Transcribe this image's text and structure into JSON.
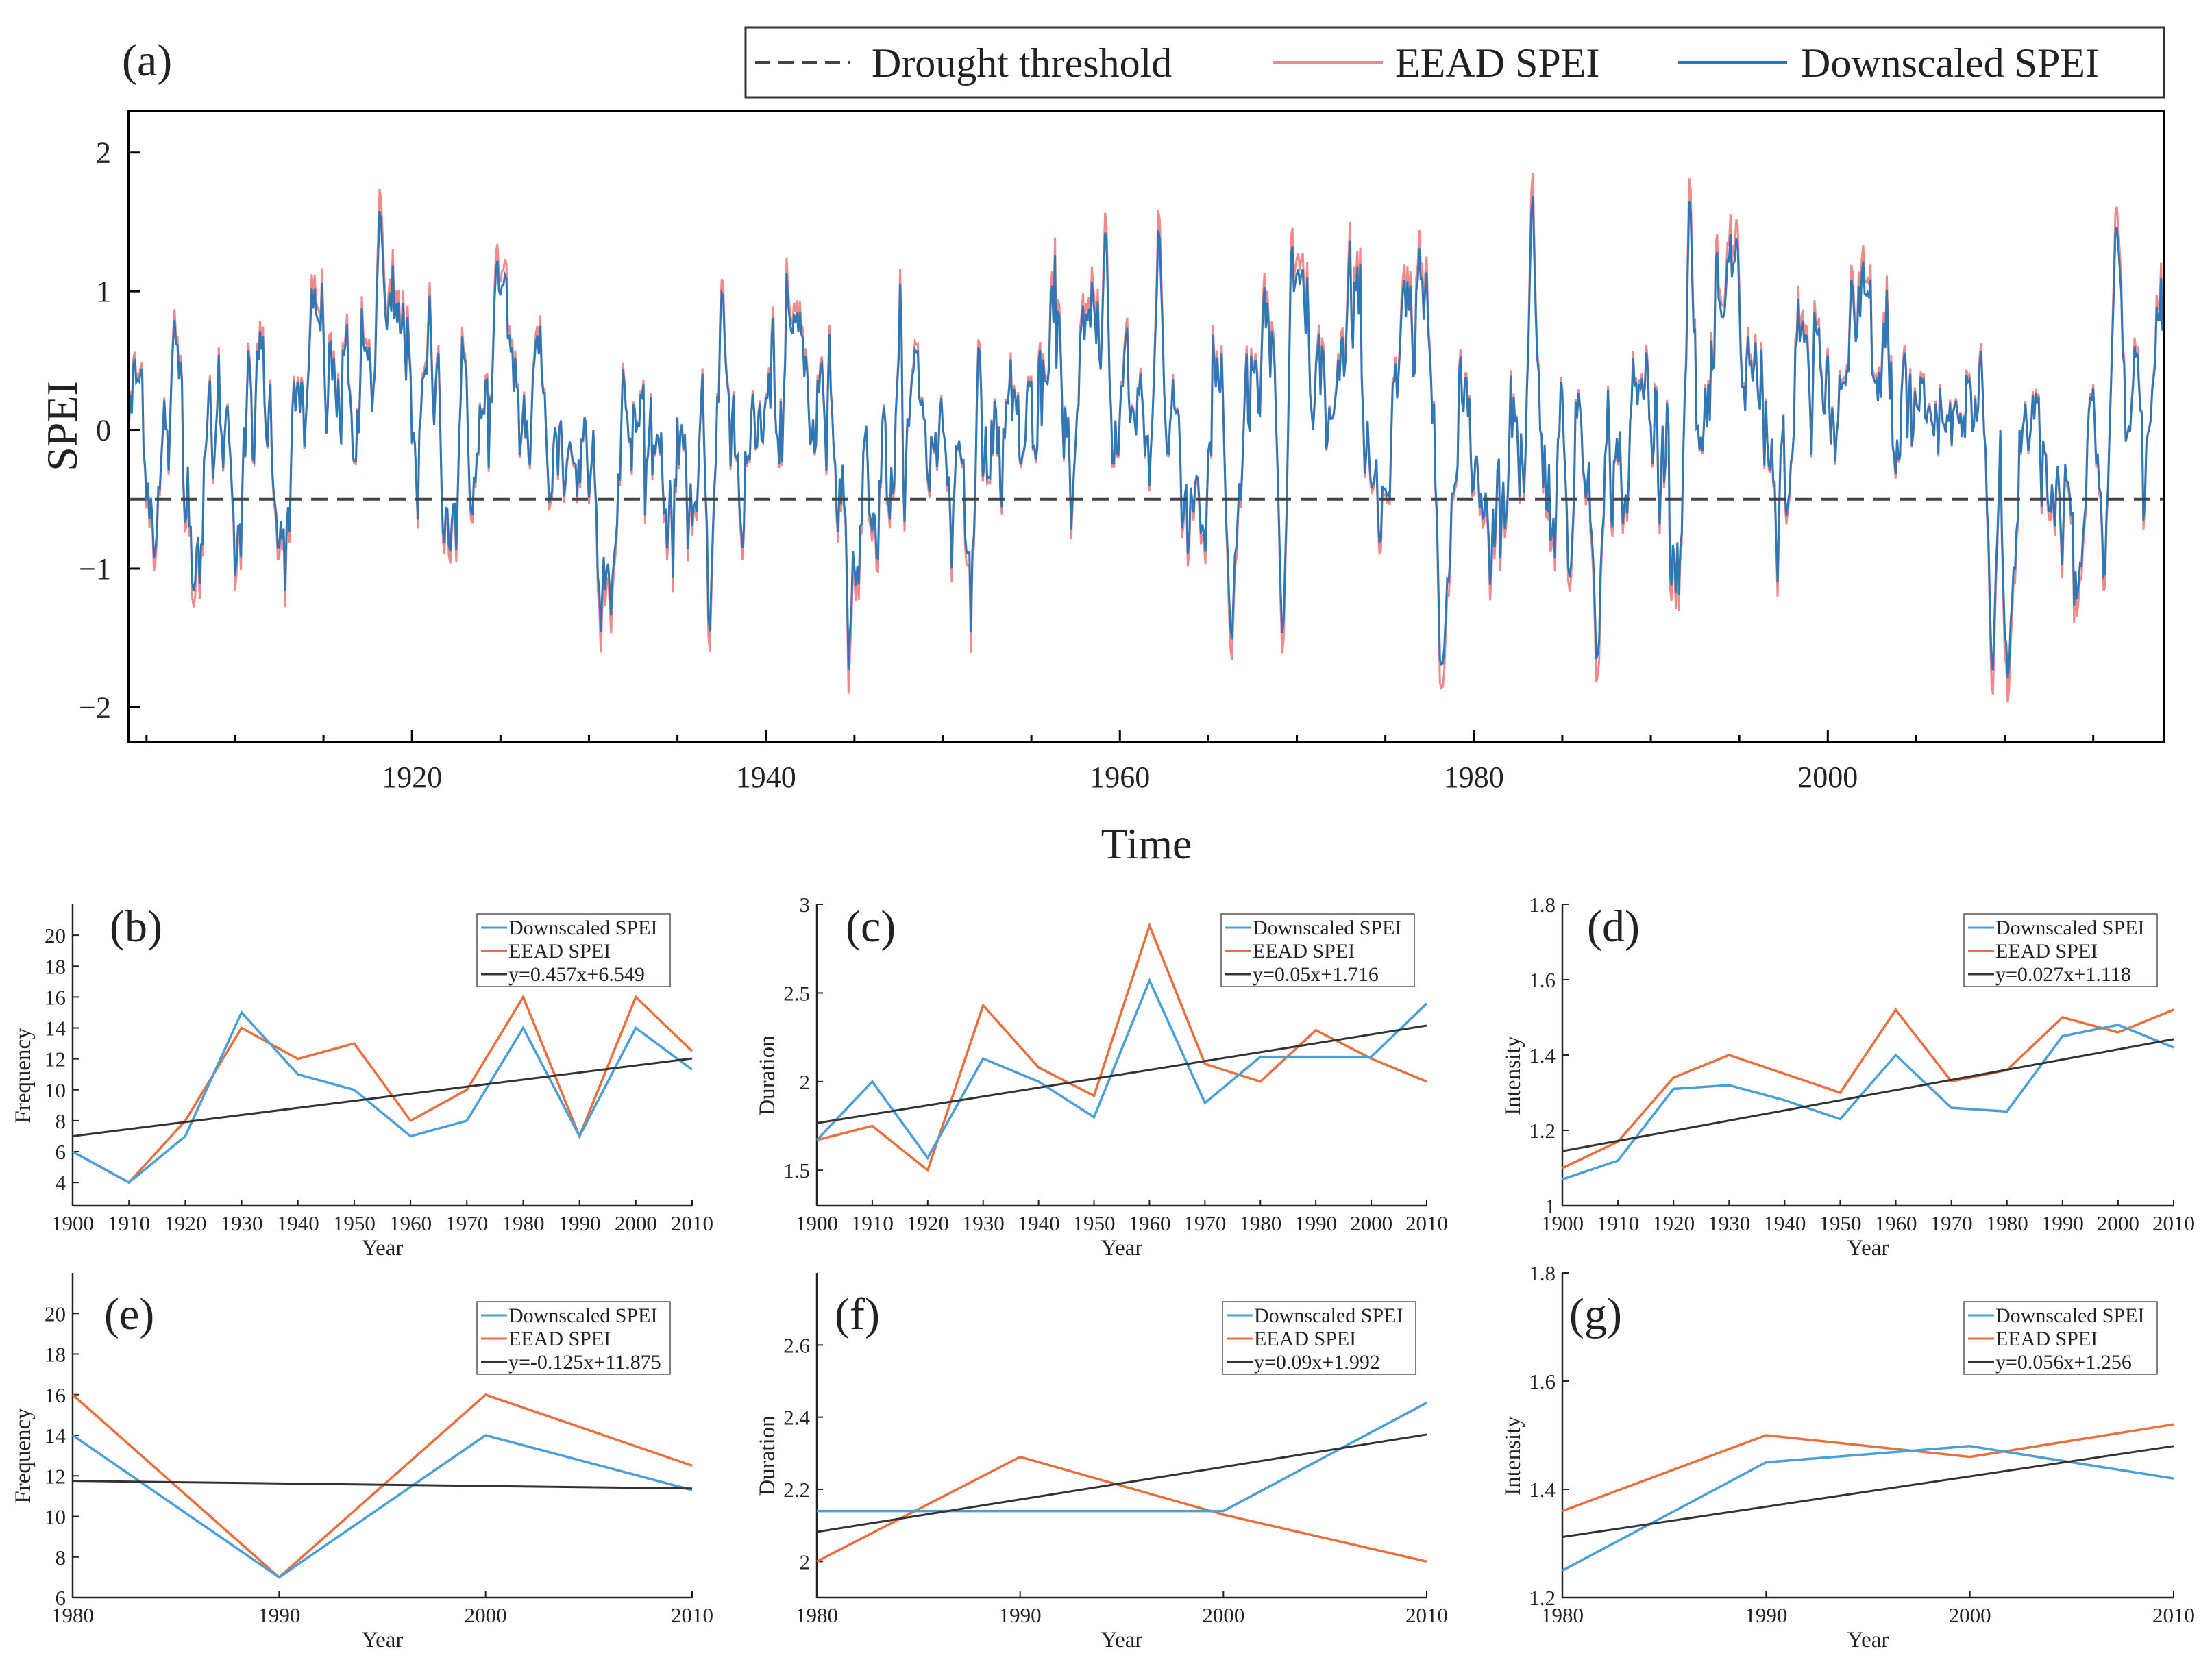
{
  "chart_data": [
    {
      "id": "a",
      "panel_label": "(a)",
      "type": "line",
      "xlabel": "Time",
      "ylabel": "SPEI",
      "xlim": [
        1904,
        2019
      ],
      "ylim": [
        -2.25,
        2.3
      ],
      "xticks": [
        1920,
        1940,
        1960,
        1980,
        2000
      ],
      "yticks": [
        -2,
        -1,
        0,
        1,
        2
      ],
      "threshold": -0.5,
      "legend": {
        "threshold": "Drought threshold",
        "eead": "EEAD SPEI",
        "downscaled": "Downscaled SPEI"
      },
      "notable_peaks": [
        {
          "year": 1918.2,
          "value": 1.68
        },
        {
          "year": 1924.8,
          "value": 1.28
        },
        {
          "year": 1936.8,
          "value": -1.62
        },
        {
          "year": 1959.2,
          "value": 1.55
        },
        {
          "year": 1962.2,
          "value": 1.58
        },
        {
          "year": 1966.3,
          "value": -1.62
        },
        {
          "year": 1969.2,
          "value": -1.58
        },
        {
          "year": 1983.3,
          "value": 1.87
        },
        {
          "year": 1992.2,
          "value": 1.87
        },
        {
          "year": 2009.3,
          "value": -1.85
        },
        {
          "year": 2010.2,
          "value": -1.88
        },
        {
          "year": 2016.3,
          "value": 1.57
        }
      ]
    },
    {
      "id": "b",
      "panel_label": "(b)",
      "type": "line",
      "xlabel": "Year",
      "ylabel": "Frequency",
      "xlim": [
        1900,
        2010
      ],
      "ylim": [
        2.5,
        22
      ],
      "xticks": [
        1900,
        1910,
        1920,
        1930,
        1940,
        1950,
        1960,
        1970,
        1980,
        1990,
        2000,
        2010
      ],
      "yticks": [
        4,
        6,
        8,
        10,
        12,
        14,
        16,
        18,
        20
      ],
      "series": [
        {
          "name": "Downscaled SPEI",
          "x": [
            1900,
            1910,
            1920,
            1930,
            1940,
            1950,
            1960,
            1970,
            1980,
            1990,
            2000,
            2010
          ],
          "values": [
            6,
            4,
            7,
            15,
            11,
            10,
            7,
            8,
            14,
            7,
            14,
            11.3
          ]
        },
        {
          "name": "EEAD SPEI",
          "x": [
            1900,
            1910,
            1920,
            1930,
            1940,
            1950,
            1960,
            1970,
            1980,
            1990,
            2000,
            2010
          ],
          "values": [
            6,
            4,
            8,
            14,
            12,
            13,
            8,
            10,
            16,
            7,
            16,
            12.5
          ]
        }
      ],
      "trend": {
        "label": "y=0.457x+6.549",
        "x": [
          1900,
          2010
        ],
        "values": [
          7.0,
          12.03
        ]
      }
    },
    {
      "id": "c",
      "panel_label": "(c)",
      "type": "line",
      "xlabel": "Year",
      "ylabel": "Duration",
      "xlim": [
        1900,
        2010
      ],
      "ylim": [
        1.3,
        3.0
      ],
      "xticks": [
        1900,
        1910,
        1920,
        1930,
        1940,
        1950,
        1960,
        1970,
        1980,
        1990,
        2000,
        2010
      ],
      "yticks": [
        1.5,
        2,
        2.5,
        3
      ],
      "series": [
        {
          "name": "Downscaled SPEI",
          "x": [
            1900,
            1910,
            1920,
            1930,
            1940,
            1950,
            1960,
            1970,
            1980,
            1990,
            2000,
            2010
          ],
          "values": [
            1.67,
            2.0,
            1.57,
            2.13,
            2.0,
            1.8,
            2.57,
            1.88,
            2.14,
            2.14,
            2.14,
            2.44
          ]
        },
        {
          "name": "EEAD SPEI",
          "x": [
            1900,
            1910,
            1920,
            1930,
            1940,
            1950,
            1960,
            1970,
            1980,
            1990,
            2000,
            2010
          ],
          "values": [
            1.67,
            1.75,
            1.5,
            2.43,
            2.08,
            1.92,
            2.88,
            2.1,
            2.0,
            2.29,
            2.13,
            2.0
          ]
        }
      ],
      "trend": {
        "label": "y=0.05x+1.716",
        "x": [
          1900,
          2010
        ],
        "values": [
          1.766,
          2.316
        ]
      }
    },
    {
      "id": "d",
      "panel_label": "(d)",
      "type": "line",
      "xlabel": "Year",
      "ylabel": "Intensity",
      "xlim": [
        1900,
        2010
      ],
      "ylim": [
        1.0,
        1.8
      ],
      "xticks": [
        1900,
        1910,
        1920,
        1930,
        1940,
        1950,
        1960,
        1970,
        1980,
        1990,
        2000,
        2010
      ],
      "yticks": [
        1,
        1.2,
        1.4,
        1.6,
        1.8
      ],
      "series": [
        {
          "name": "Downscaled SPEI",
          "x": [
            1900,
            1910,
            1920,
            1930,
            1940,
            1950,
            1960,
            1970,
            1980,
            1990,
            2000,
            2010
          ],
          "values": [
            1.07,
            1.12,
            1.31,
            1.32,
            1.28,
            1.23,
            1.4,
            1.26,
            1.25,
            1.45,
            1.48,
            1.42
          ]
        },
        {
          "name": "EEAD SPEI",
          "x": [
            1900,
            1910,
            1920,
            1930,
            1940,
            1950,
            1960,
            1970,
            1980,
            1990,
            2000,
            2010
          ],
          "values": [
            1.1,
            1.17,
            1.34,
            1.4,
            1.35,
            1.3,
            1.52,
            1.33,
            1.36,
            1.5,
            1.46,
            1.52
          ]
        }
      ],
      "trend": {
        "label": "y=0.027x+1.118",
        "x": [
          1900,
          2010
        ],
        "values": [
          1.145,
          1.442
        ]
      }
    },
    {
      "id": "e",
      "panel_label": "(e)",
      "type": "line",
      "xlabel": "Year",
      "ylabel": "Frequency",
      "xlim": [
        1980,
        2010
      ],
      "ylim": [
        6,
        22
      ],
      "xticks": [
        1980,
        1990,
        2000,
        2010
      ],
      "yticks": [
        6,
        8,
        10,
        12,
        14,
        16,
        18,
        20
      ],
      "series": [
        {
          "name": "Downscaled SPEI",
          "x": [
            1980,
            1990,
            2000,
            2010
          ],
          "values": [
            14,
            7,
            14,
            11.3
          ]
        },
        {
          "name": "EEAD SPEI",
          "x": [
            1980,
            1990,
            2000,
            2010
          ],
          "values": [
            16,
            7,
            16,
            12.5
          ]
        }
      ],
      "trend": {
        "label": "y=-0.125x+11.875",
        "x": [
          1980,
          2010
        ],
        "values": [
          11.75,
          11.375
        ]
      }
    },
    {
      "id": "f",
      "panel_label": "(f)",
      "type": "line",
      "xlabel": "Year",
      "ylabel": "Duration",
      "xlim": [
        1980,
        2010
      ],
      "ylim": [
        1.9,
        2.8
      ],
      "xticks": [
        1980,
        1990,
        2000,
        2010
      ],
      "yticks": [
        2,
        2.2,
        2.4,
        2.6
      ],
      "series": [
        {
          "name": "Downscaled SPEI",
          "x": [
            1980,
            1990,
            2000,
            2010
          ],
          "values": [
            2.14,
            2.14,
            2.14,
            2.44
          ]
        },
        {
          "name": "EEAD SPEI",
          "x": [
            1980,
            1990,
            2000,
            2010
          ],
          "values": [
            2.0,
            2.29,
            2.13,
            2.0
          ]
        }
      ],
      "trend": {
        "label": "y=0.09x+1.992",
        "x": [
          1980,
          2010
        ],
        "values": [
          2.082,
          2.352
        ]
      }
    },
    {
      "id": "g",
      "panel_label": "(g)",
      "type": "line",
      "xlabel": "Year",
      "ylabel": "Intensity",
      "xlim": [
        1980,
        2010
      ],
      "ylim": [
        1.2,
        1.8
      ],
      "xticks": [
        1980,
        1990,
        2000,
        2010
      ],
      "yticks": [
        1.2,
        1.4,
        1.6,
        1.8
      ],
      "series": [
        {
          "name": "Downscaled SPEI",
          "x": [
            1980,
            1990,
            2000,
            2010
          ],
          "values": [
            1.25,
            1.45,
            1.48,
            1.42
          ]
        },
        {
          "name": "EEAD SPEI",
          "x": [
            1980,
            1990,
            2000,
            2010
          ],
          "values": [
            1.36,
            1.5,
            1.46,
            1.52
          ]
        }
      ],
      "trend": {
        "label": "y=0.056x+1.256",
        "x": [
          1980,
          2010
        ],
        "values": [
          1.312,
          1.48
        ]
      }
    }
  ],
  "colors": {
    "downscaled_big": "#2f78b5",
    "eead_big": "#f08a8a",
    "downscaled": "#4a9fd8",
    "eead": "#e8703f",
    "trend": "#333333",
    "threshold": "#444444"
  }
}
